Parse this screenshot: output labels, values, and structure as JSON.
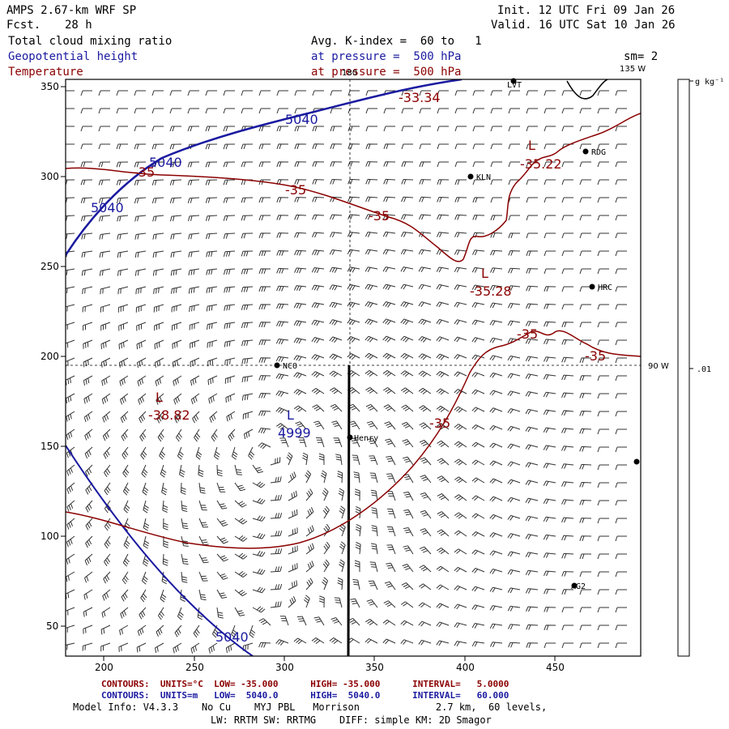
{
  "header": {
    "model": "AMPS 2.67-km WRF SP",
    "forecast_label": "Fcst.",
    "forecast_value": "28 h",
    "init": "Init. 12 UTC Fri 09 Jan 26",
    "valid": "Valid. 16 UTC Sat 10 Jan 26",
    "field1": "Total cloud mixing ratio",
    "field1_desc": "Avg. K-index =  60 to   1",
    "field2": "Geopotential height",
    "field2_desc": "at pressure =  500 hPa",
    "field3": "Temperature",
    "field3_desc": "at pressure =  500 hPa",
    "sm": "sm= 2"
  },
  "map": {
    "x_ticks": [
      "200",
      "250",
      "300",
      "350",
      "400",
      "450"
    ],
    "y_ticks": [
      "350",
      "300",
      "250",
      "200",
      "150",
      "100",
      "50"
    ],
    "longitude_labels": [
      "180",
      "135 W",
      "90 W"
    ],
    "colorbar_unit": "g kg⁻¹",
    "colorbar_value": ".01",
    "height_labels": [
      "5040",
      "5040",
      "5040",
      "5040",
      "4999",
      "L"
    ],
    "temperature_labels": [
      "-35",
      "-35",
      "-35",
      "-35",
      "-35",
      "-35",
      "-33.34",
      "-35.22",
      "-35.28",
      "-38.82"
    ],
    "low_labels": [
      "L",
      "L",
      "L"
    ],
    "stations": [
      {
        "name": "LVT"
      },
      {
        "name": "RDG"
      },
      {
        "name": "KLN"
      },
      {
        "name": "HRC"
      },
      {
        "name": "NCO"
      },
      {
        "name": "Henry"
      },
      {
        "name": "AG2"
      },
      {
        "name": ""
      }
    ],
    "colors": {
      "height": "#1a1aa0",
      "temperature": "#8b0000",
      "frame": "#000000"
    }
  },
  "footer": {
    "temp_contours": "CONTOURS:  UNITS=°C  LOW= -35.000      HIGH= -35.000      INTERVAL=   5.0000",
    "height_contours": "CONTOURS:  UNITS=m   LOW=  5040.0      HIGH=  5040.0      INTERVAL=   60.000",
    "model_info": "Model Info: V4.3.3    No Cu    MYJ PBL   Morrison             2.7 km,  60 levels,",
    "physics": "LW: RRTM SW: RRTMG    DIFF: simple KM: 2D Smagor"
  }
}
